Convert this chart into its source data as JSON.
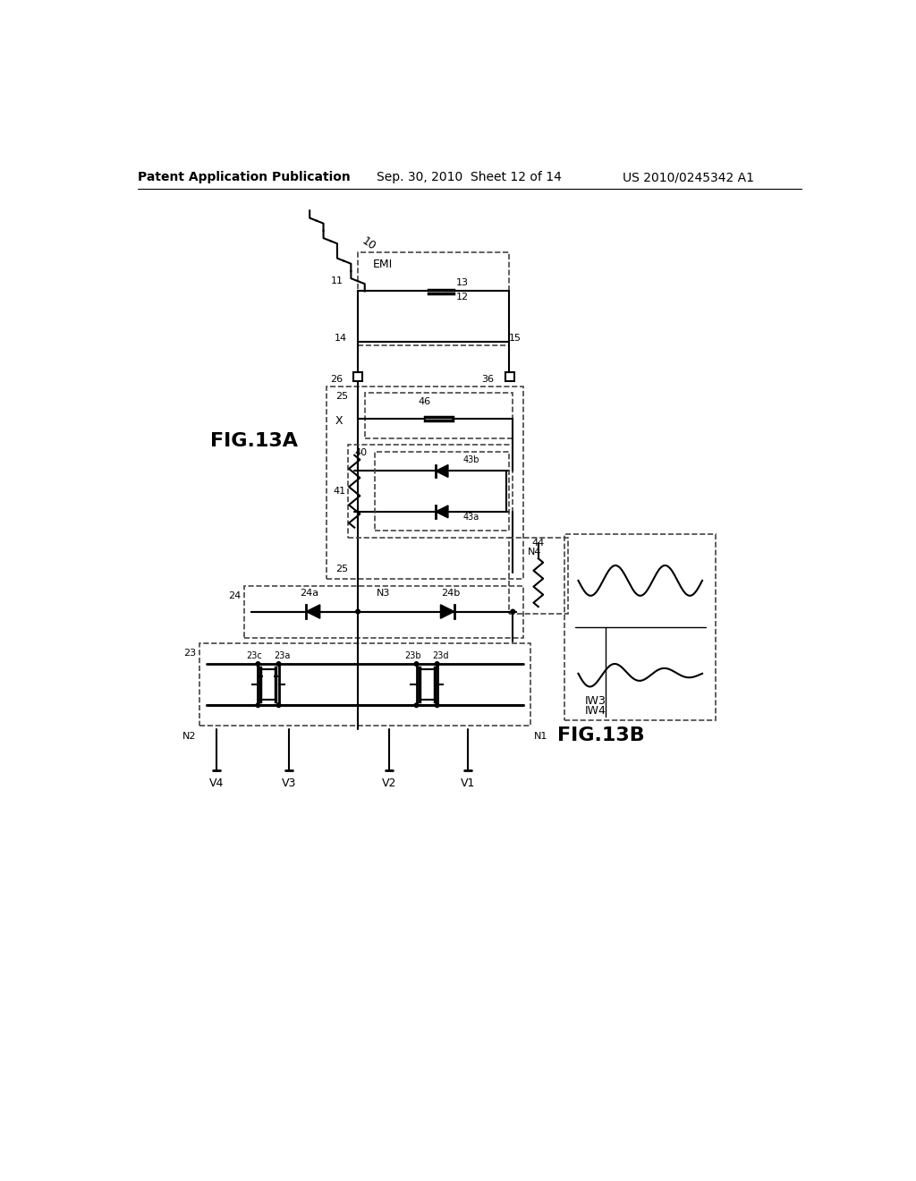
{
  "title_left": "Patent Application Publication",
  "title_center": "Sep. 30, 2010  Sheet 12 of 14",
  "title_right": "US 2010/0245342 A1",
  "fig_label_A": "FIG.13A",
  "fig_label_B": "FIG.13B",
  "background": "#ffffff"
}
